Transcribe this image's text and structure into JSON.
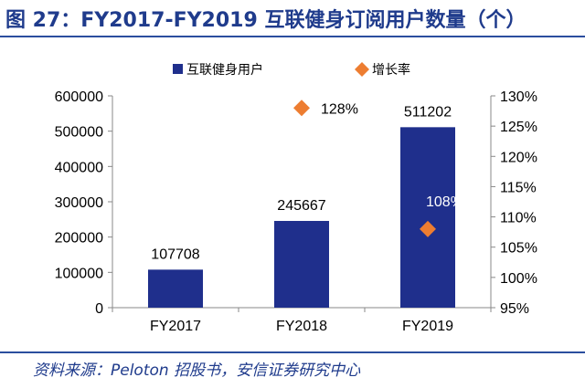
{
  "header": {
    "title": "图 27：FY2017-FY2019 互联健身订阅用户数量（个）"
  },
  "footer": {
    "source": "资料来源：Peloton 招股书，安信证券研究中心"
  },
  "colors": {
    "bar": "#1f2f8c",
    "marker": "#ed7d31",
    "title": "#1f3b8c",
    "rule": "#2b4e9e"
  },
  "chart_data": {
    "type": "bar",
    "categories": [
      "FY2017",
      "FY2018",
      "FY2019"
    ],
    "series": [
      {
        "name": "互联健身用户",
        "type": "bar",
        "axis": "left",
        "values": [
          107708,
          245667,
          511202
        ],
        "labels": [
          "107708",
          "245667",
          "511202"
        ]
      },
      {
        "name": "增长率",
        "type": "scatter",
        "marker": "diamond",
        "axis": "right",
        "values": [
          null,
          128,
          108
        ],
        "labels": [
          "",
          "128%",
          "108%"
        ]
      }
    ],
    "y_left": {
      "min": 0,
      "max": 600000,
      "ticks": [
        "0",
        "100000",
        "200000",
        "300000",
        "400000",
        "500000",
        "600000"
      ]
    },
    "y_right": {
      "min": 95,
      "max": 130,
      "ticks": [
        "95%",
        "100%",
        "105%",
        "110%",
        "115%",
        "120%",
        "125%",
        "130%"
      ]
    },
    "legend_position": "top",
    "grid": false
  }
}
